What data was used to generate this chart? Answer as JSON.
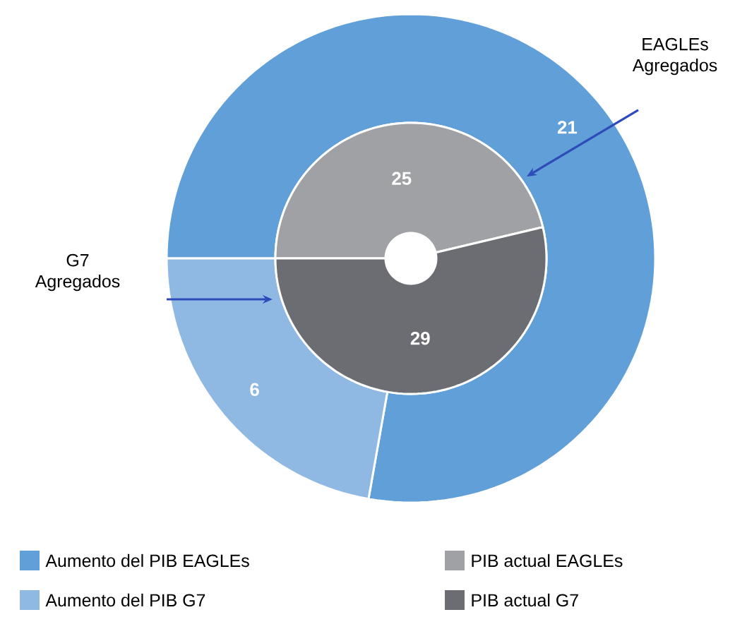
{
  "chart_data": {
    "type": "donut",
    "categories": [
      "Aumento del PIB EAGLEs",
      "Aumento del PIB G7",
      "PIB actual EAGLEs",
      "PIB actual G7"
    ],
    "colors": [
      "#609fd8",
      "#8fb8e3",
      "#a0a1a5",
      "#6c6d72"
    ],
    "series": [
      {
        "values": [
          21,
          6,
          null,
          null
        ]
      },
      {
        "values": [
          null,
          null,
          25,
          29
        ]
      }
    ],
    "data_labels": true,
    "legend": "bottom",
    "annotations": [
      "EAGLEs Agregados",
      "G7 Agregados"
    ]
  }
}
